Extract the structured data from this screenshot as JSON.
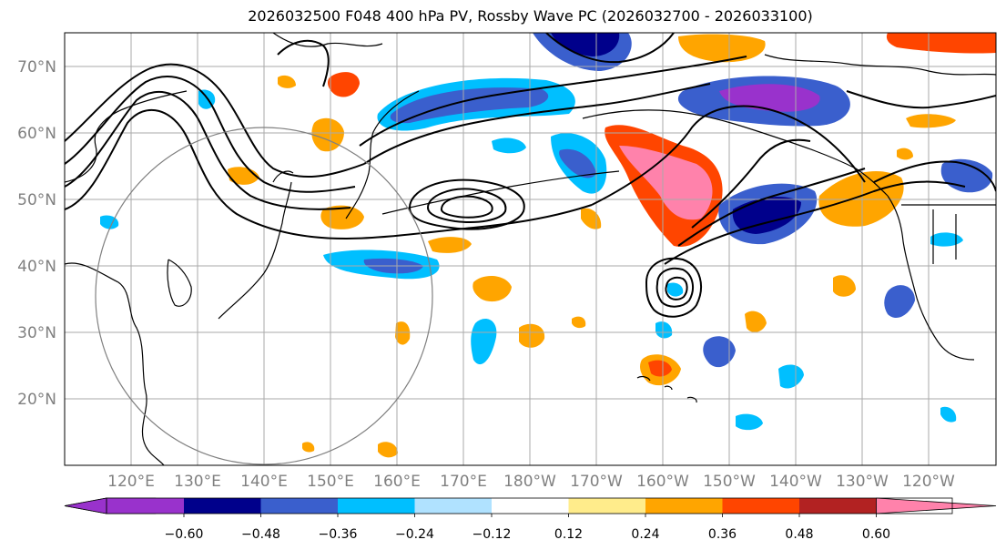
{
  "title": "2026032500 F048 400 hPa PV, Rossby Wave PC (2026032700 - 2026033100)",
  "map": {
    "lat_ticks": [
      "70°N",
      "60°N",
      "50°N",
      "40°N",
      "30°N",
      "20°N"
    ],
    "lon_ticks": [
      "120°E",
      "130°E",
      "140°E",
      "150°E",
      "160°E",
      "170°E",
      "180°W",
      "170°W",
      "160°W",
      "150°W",
      "140°W",
      "130°W",
      "120°W"
    ]
  },
  "colorbar": {
    "levels": [
      "−0.60",
      "−0.48",
      "−0.36",
      "−0.24",
      "−0.12",
      "0.12",
      "0.24",
      "0.36",
      "0.48",
      "0.60"
    ],
    "colors": [
      "#9932cc",
      "#00008b",
      "#3a5fcd",
      "#00bfff",
      "#b0e2ff",
      "#ffffff",
      "#ffec8b",
      "#ffa500",
      "#ff4500",
      "#b22222",
      "#ff82ab"
    ]
  },
  "colors": {
    "grid": "#aaaaaa",
    "coast": "#000000",
    "contour": "#000000",
    "circle": "#808080"
  }
}
